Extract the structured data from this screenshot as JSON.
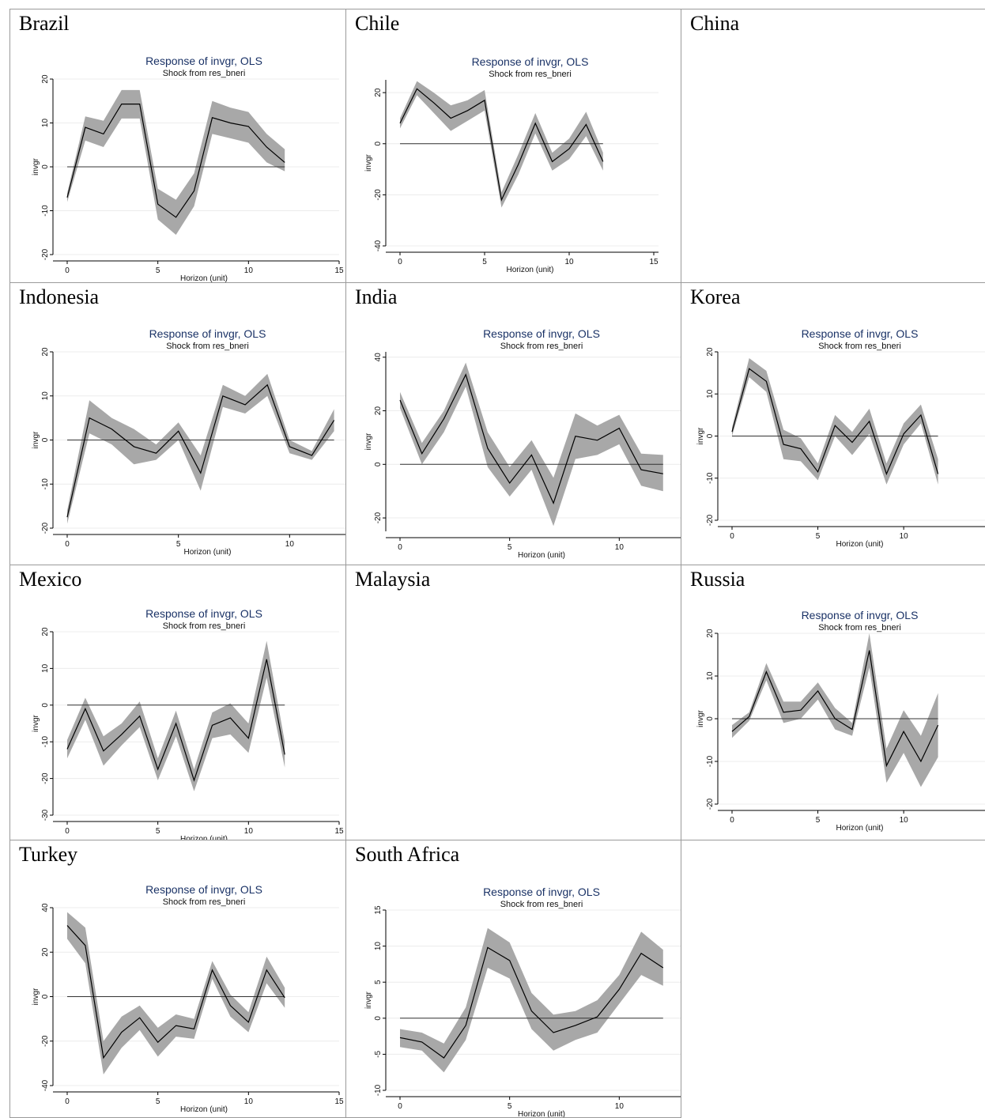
{
  "panels": [
    {
      "name": "Brazil"
    },
    {
      "name": "Chile"
    },
    {
      "name": "China"
    },
    {
      "name": "Indonesia"
    },
    {
      "name": "India"
    },
    {
      "name": "Korea"
    },
    {
      "name": "Mexico"
    },
    {
      "name": "Malaysia"
    },
    {
      "name": "Russia"
    },
    {
      "name": "Turkey"
    },
    {
      "name": "South Africa"
    }
  ],
  "colors": {
    "band": "#a8a8a8",
    "line": "#000000",
    "title": "#1a3266"
  },
  "chart_data": [
    {
      "panel": "Brazil",
      "type": "area",
      "title": "Response of invgr, OLS",
      "subtitle": "Shock from res_bneri",
      "xlabel": "Horizon (unit)",
      "ylabel": "invgr",
      "x": [
        0,
        1,
        2,
        3,
        4,
        5,
        6,
        7,
        8,
        9,
        10,
        11,
        12
      ],
      "irf": [
        -7,
        9,
        7.5,
        14.3,
        14.3,
        -8.5,
        -11.5,
        -5.5,
        11.2,
        10,
        9.2,
        4.5,
        1
      ],
      "lower": [
        -8,
        6,
        4.5,
        11,
        11,
        -12,
        -15.5,
        -9,
        7.5,
        6.5,
        5.5,
        1,
        -1
      ],
      "upper": [
        -6,
        11.5,
        10.5,
        17.5,
        17.5,
        -5,
        -7.5,
        -1.5,
        15,
        13.5,
        12.5,
        7.5,
        4
      ],
      "xlim": [
        0,
        15
      ],
      "ylim": [
        -20,
        20
      ],
      "xticks": [
        0,
        5,
        10,
        15
      ],
      "yticks": [
        -20,
        -10,
        0,
        10,
        20
      ]
    },
    {
      "panel": "Chile",
      "type": "area",
      "title": "Response of invgr, OLS",
      "subtitle": "Shock from res_bneri",
      "xlabel": "Horizon (unit)",
      "ylabel": "invgr",
      "x": [
        0,
        1,
        2,
        3,
        4,
        5,
        6,
        7,
        8,
        9,
        10,
        11,
        12
      ],
      "irf": [
        8,
        21.5,
        16,
        10,
        13,
        17,
        -22,
        -8,
        8,
        -7,
        -2,
        7.5,
        -7
      ],
      "lower": [
        6,
        19,
        12,
        5,
        9,
        13,
        -25,
        -12,
        4,
        -10.5,
        -6,
        3,
        -10.5
      ],
      "upper": [
        10,
        24.5,
        20,
        15,
        17,
        21,
        -19,
        -4,
        12,
        -3.5,
        2,
        12.5,
        -3.5
      ],
      "xlim": [
        0,
        15
      ],
      "ylim": [
        -40,
        25
      ],
      "xticks": [
        0,
        5,
        10,
        15
      ],
      "yticks": [
        -40,
        -20,
        0,
        20
      ]
    },
    {
      "panel": "Indonesia",
      "type": "area",
      "title": "Response of invgr, OLS",
      "subtitle": "Shock from res_bneri",
      "xlabel": "Horizon (unit)",
      "ylabel": "invgr",
      "x": [
        0,
        1,
        2,
        3,
        4,
        5,
        6,
        7,
        8,
        9,
        10,
        11,
        12
      ],
      "irf": [
        -17.5,
        5,
        2.5,
        -1.5,
        -3,
        2,
        -7.5,
        10,
        8,
        12.5,
        -1.5,
        -3.5,
        4.5
      ],
      "lower": [
        -19,
        1.5,
        -1,
        -5.5,
        -4.5,
        0,
        -11.5,
        7.5,
        6,
        10,
        -3,
        -4.5,
        2
      ],
      "upper": [
        -16,
        9,
        5,
        2.5,
        -1,
        4,
        -3.5,
        12.5,
        10,
        15,
        0,
        -2.5,
        7
      ],
      "xlim": [
        0,
        15
      ],
      "ylim": [
        -20,
        20
      ],
      "xticks": [
        0,
        5,
        10
      ],
      "yticks": [
        -20,
        -10,
        0,
        10,
        20
      ]
    },
    {
      "panel": "India",
      "type": "area",
      "title": "Response of invgr, OLS",
      "subtitle": "Shock from res_bneri",
      "xlabel": "Horizon (unit)",
      "ylabel": "invgr",
      "x": [
        0,
        1,
        2,
        3,
        4,
        5,
        6,
        7,
        8,
        9,
        10,
        11,
        12
      ],
      "irf": [
        24,
        4,
        17,
        33.5,
        6,
        -7,
        3.5,
        -14.5,
        10.5,
        9,
        13.5,
        -2,
        -3.5
      ],
      "lower": [
        21,
        0,
        12,
        29,
        -1,
        -12,
        -2,
        -23,
        2,
        3.5,
        7.5,
        -8,
        -10
      ],
      "upper": [
        27,
        8,
        20,
        38,
        12,
        -1,
        9,
        -5,
        19,
        14.5,
        18.5,
        4,
        3.5
      ],
      "xlim": [
        0,
        15
      ],
      "ylim": [
        -25,
        42
      ],
      "xticks": [
        0,
        5,
        10
      ],
      "yticks": [
        -20,
        0,
        20,
        40
      ]
    },
    {
      "panel": "Korea",
      "type": "area",
      "title": "Response of invgr, OLS",
      "subtitle": "Shock from res_bneri",
      "xlabel": "Horizon (unit)",
      "ylabel": "invgr",
      "x": [
        0,
        1,
        2,
        3,
        4,
        5,
        6,
        7,
        8,
        9,
        10,
        11,
        12
      ],
      "irf": [
        1,
        16,
        13,
        -2,
        -3,
        -8.5,
        2.5,
        -1.5,
        3.5,
        -9,
        0.5,
        5,
        -9
      ],
      "lower": [
        0,
        14,
        10.5,
        -5.5,
        -6,
        -10.5,
        0,
        -4.5,
        0.5,
        -11.5,
        -2,
        3,
        -11.5
      ],
      "upper": [
        2,
        18.5,
        15.5,
        1.5,
        -0.5,
        -6.5,
        5,
        1,
        6.5,
        -6.5,
        3,
        7.5,
        -5.5
      ],
      "xlim": [
        0,
        14
      ],
      "ylim": [
        -20,
        20
      ],
      "xticks": [
        0,
        5,
        10
      ],
      "yticks": [
        -20,
        -10,
        0,
        10,
        20
      ]
    },
    {
      "panel": "Mexico",
      "type": "area",
      "title": "Response of invgr, OLS",
      "subtitle": "Shock from res_bneri",
      "xlabel": "Horizon (unit)",
      "ylabel": "invgr",
      "x": [
        0,
        1,
        2,
        3,
        4,
        5,
        6,
        7,
        8,
        9,
        10,
        11,
        12
      ],
      "irf": [
        -12,
        -1,
        -12.5,
        -8,
        -3,
        -17.5,
        -5,
        -20.5,
        -5.5,
        -3.5,
        -9,
        12.5,
        -13.5
      ],
      "lower": [
        -14.5,
        -4,
        -16.5,
        -11,
        -6,
        -20.5,
        -8.5,
        -23.5,
        -9,
        -8,
        -13,
        7.5,
        -17
      ],
      "upper": [
        -9.5,
        2,
        -8.5,
        -5,
        1,
        -14.5,
        -1.5,
        -17.5,
        -2,
        0.5,
        -5,
        17.5,
        -10
      ],
      "xlim": [
        0,
        15
      ],
      "ylim": [
        -30,
        20
      ],
      "xticks": [
        0,
        5,
        10,
        15
      ],
      "yticks": [
        -30,
        -20,
        -10,
        0,
        10,
        20
      ]
    },
    {
      "panel": "Russia",
      "type": "area",
      "title": "Response of invgr, OLS",
      "subtitle": "Shock from res_bneri",
      "xlabel": "Horizon (unit)",
      "ylabel": "invgr",
      "x": [
        0,
        1,
        2,
        3,
        4,
        5,
        6,
        7,
        8,
        9,
        10,
        11,
        12
      ],
      "irf": [
        -3,
        0.5,
        11,
        1.5,
        2,
        6.5,
        0,
        -2.5,
        16,
        -11,
        -3,
        -10,
        -1.5
      ],
      "lower": [
        -4.5,
        -0.5,
        9,
        -1,
        0,
        4.5,
        -2.5,
        -4,
        12,
        -15,
        -8,
        -16,
        -9
      ],
      "upper": [
        -1.5,
        1.5,
        13,
        4,
        4,
        8.5,
        2.5,
        -1,
        20,
        -7,
        2,
        -4,
        6
      ],
      "xlim": [
        0,
        14
      ],
      "ylim": [
        -20,
        20
      ],
      "xticks": [
        0,
        5,
        10
      ],
      "yticks": [
        -20,
        -10,
        0,
        10,
        20
      ]
    },
    {
      "panel": "Turkey",
      "type": "area",
      "title": "Response of invgr, OLS",
      "subtitle": "Shock from res_bneri",
      "xlabel": "Horizon (unit)",
      "ylabel": "invgr",
      "x": [
        0,
        1,
        2,
        3,
        4,
        5,
        6,
        7,
        8,
        9,
        10,
        11,
        12
      ],
      "irf": [
        32,
        23,
        -27.5,
        -16,
        -9.5,
        -20.5,
        -13,
        -14.5,
        12,
        -4,
        -11.5,
        12,
        -0.5
      ],
      "lower": [
        26,
        15,
        -35,
        -23,
        -15,
        -27,
        -18,
        -19,
        8,
        -9,
        -16,
        6,
        -5
      ],
      "upper": [
        38,
        31,
        -20,
        -9,
        -4,
        -14,
        -8,
        -10,
        16,
        1,
        -7,
        18,
        4
      ],
      "xlim": [
        0,
        15
      ],
      "ylim": [
        -40,
        40
      ],
      "xticks": [
        0,
        5,
        10,
        15
      ],
      "yticks": [
        -40,
        -20,
        0,
        20,
        40
      ]
    },
    {
      "panel": "South Africa",
      "type": "area",
      "title": "Response of invgr, OLS",
      "subtitle": "Shock from res_bneri",
      "xlabel": "Horizon (unit)",
      "ylabel": "invgr",
      "x": [
        0,
        1,
        2,
        3,
        4,
        5,
        6,
        7,
        8,
        9,
        10,
        11,
        12
      ],
      "irf": [
        -2.7,
        -3.3,
        -5.5,
        -1,
        9.8,
        8,
        1,
        -2,
        -1,
        0.2,
        4,
        9,
        7
      ],
      "lower": [
        -4,
        -4.5,
        -7.5,
        -3,
        7,
        5.5,
        -1.5,
        -4.5,
        -3,
        -2,
        2,
        6,
        4.5
      ],
      "upper": [
        -1.5,
        -2,
        -3.5,
        1.5,
        12.5,
        10.5,
        3.5,
        0.5,
        1,
        2.5,
        6,
        12,
        9.5
      ],
      "xlim": [
        0,
        15
      ],
      "ylim": [
        -10,
        15
      ],
      "xticks": [
        0,
        5,
        10
      ],
      "yticks": [
        -10,
        -5,
        0,
        5,
        10,
        15
      ]
    }
  ]
}
